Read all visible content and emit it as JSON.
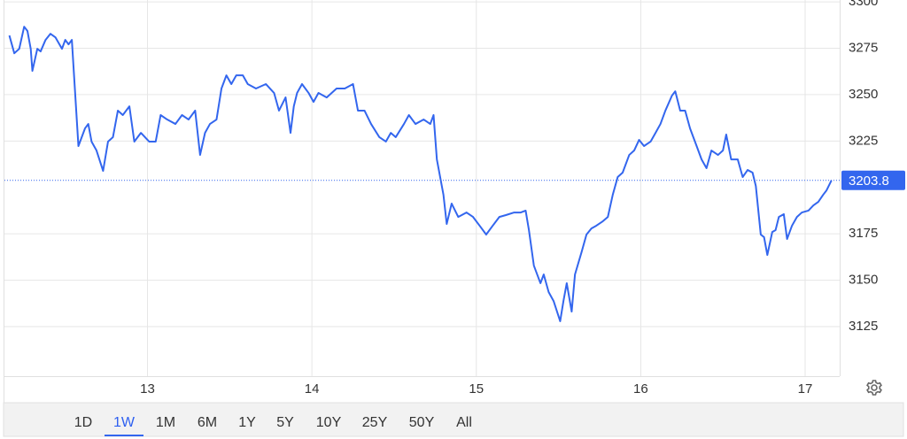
{
  "chart_data": {
    "type": "line",
    "color": "#3366ee",
    "grid": true,
    "xlim": [
      12.13,
      17.21
    ],
    "xticks": [
      13,
      14,
      15,
      16,
      17
    ],
    "ylim": [
      3098.3,
      3301
    ],
    "yticks": [
      3125,
      3150,
      3175,
      3225,
      3250,
      3275,
      3300
    ],
    "x": [
      12.16,
      12.19,
      12.22,
      12.25,
      12.27,
      12.29,
      12.3,
      12.33,
      12.35,
      12.38,
      12.41,
      12.44,
      12.48,
      12.5,
      12.52,
      12.54,
      12.58,
      12.62,
      12.64,
      12.66,
      12.69,
      12.73,
      12.76,
      12.79,
      12.82,
      12.85,
      12.89,
      12.92,
      12.96,
      13.01,
      13.05,
      13.08,
      13.12,
      13.17,
      13.21,
      13.25,
      13.29,
      13.32,
      13.35,
      13.38,
      13.42,
      13.45,
      13.48,
      13.51,
      13.54,
      13.58,
      13.61,
      13.66,
      13.72,
      13.77,
      13.8,
      13.84,
      13.87,
      13.89,
      13.91,
      13.94,
      13.98,
      14.01,
      14.04,
      14.09,
      14.15,
      14.2,
      14.25,
      14.28,
      14.32,
      14.36,
      14.41,
      14.45,
      14.48,
      14.51,
      14.56,
      14.59,
      14.63,
      14.68,
      14.72,
      14.74,
      14.76,
      14.8,
      14.82,
      14.85,
      14.89,
      14.94,
      14.98,
      15.02,
      15.06,
      15.1,
      15.14,
      15.18,
      15.23,
      15.27,
      15.3,
      15.32,
      15.35,
      15.39,
      15.41,
      15.44,
      15.47,
      15.51,
      15.53,
      15.55,
      15.58,
      15.6,
      15.64,
      15.67,
      15.7,
      15.73,
      15.77,
      15.8,
      15.83,
      15.86,
      15.89,
      15.93,
      15.96,
      15.99,
      16.02,
      16.06,
      16.09,
      16.12,
      16.15,
      16.19,
      16.21,
      16.24,
      16.27,
      16.3,
      16.34,
      16.37,
      16.4,
      16.43,
      16.47,
      16.5,
      16.52,
      16.55,
      16.59,
      16.62,
      16.65,
      16.68,
      16.7,
      16.73,
      16.75,
      16.77,
      16.8,
      16.82,
      16.84,
      16.87,
      16.89,
      16.92,
      16.95,
      16.98,
      17.02,
      17.05,
      17.08,
      17.11,
      17.13,
      17.16
    ],
    "values": [
      3281.9,
      3272.3,
      3274.7,
      3286.6,
      3284.3,
      3274.7,
      3262.8,
      3274.7,
      3273.3,
      3279.5,
      3282.8,
      3280.9,
      3274.7,
      3279.5,
      3277.1,
      3279.5,
      3222.3,
      3231.8,
      3234.2,
      3224.7,
      3219.9,
      3208.9,
      3224.7,
      3227.1,
      3241.4,
      3239.0,
      3243.7,
      3224.7,
      3229.4,
      3224.7,
      3224.7,
      3239.0,
      3236.6,
      3234.2,
      3239.0,
      3236.6,
      3241.4,
      3217.5,
      3229.4,
      3234.2,
      3236.6,
      3253.3,
      3260.4,
      3255.7,
      3260.4,
      3260.4,
      3255.7,
      3253.3,
      3255.7,
      3250.9,
      3241.4,
      3248.5,
      3229.4,
      3243.7,
      3250.9,
      3255.7,
      3250.9,
      3246.1,
      3250.9,
      3248.5,
      3253.3,
      3253.3,
      3255.7,
      3241.4,
      3241.4,
      3234.2,
      3227.1,
      3224.7,
      3229.4,
      3227.1,
      3234.2,
      3239.0,
      3234.2,
      3236.6,
      3234.2,
      3239.0,
      3215.1,
      3196.1,
      3180.3,
      3191.3,
      3184.1,
      3186.5,
      3184.1,
      3179.4,
      3174.6,
      3179.4,
      3184.1,
      3185.1,
      3186.5,
      3186.5,
      3187.5,
      3177.0,
      3157.9,
      3148.4,
      3153.1,
      3143.6,
      3138.8,
      3127.9,
      3138.8,
      3148.4,
      3133.1,
      3153.1,
      3165.1,
      3174.6,
      3177.9,
      3179.4,
      3181.8,
      3184.1,
      3196.1,
      3205.6,
      3208.0,
      3217.5,
      3219.9,
      3225.6,
      3222.3,
      3224.7,
      3229.4,
      3234.2,
      3241.4,
      3249.5,
      3251.8,
      3241.4,
      3241.4,
      3231.8,
      3222.3,
      3215.1,
      3210.4,
      3219.9,
      3217.5,
      3219.9,
      3228.5,
      3215.1,
      3215.1,
      3205.6,
      3209.4,
      3208.0,
      3200.8,
      3174.6,
      3173.2,
      3163.6,
      3176.0,
      3177.0,
      3184.1,
      3185.6,
      3172.2,
      3179.4,
      3184.1,
      3186.5,
      3187.5,
      3190.3,
      3192.2,
      3196.1,
      3198.4,
      3203.8
    ]
  },
  "range_buttons": [
    "1D",
    "1W",
    "1M",
    "6M",
    "1Y",
    "5Y",
    "10Y",
    "25Y",
    "50Y",
    "All"
  ],
  "active_range": "1W"
}
